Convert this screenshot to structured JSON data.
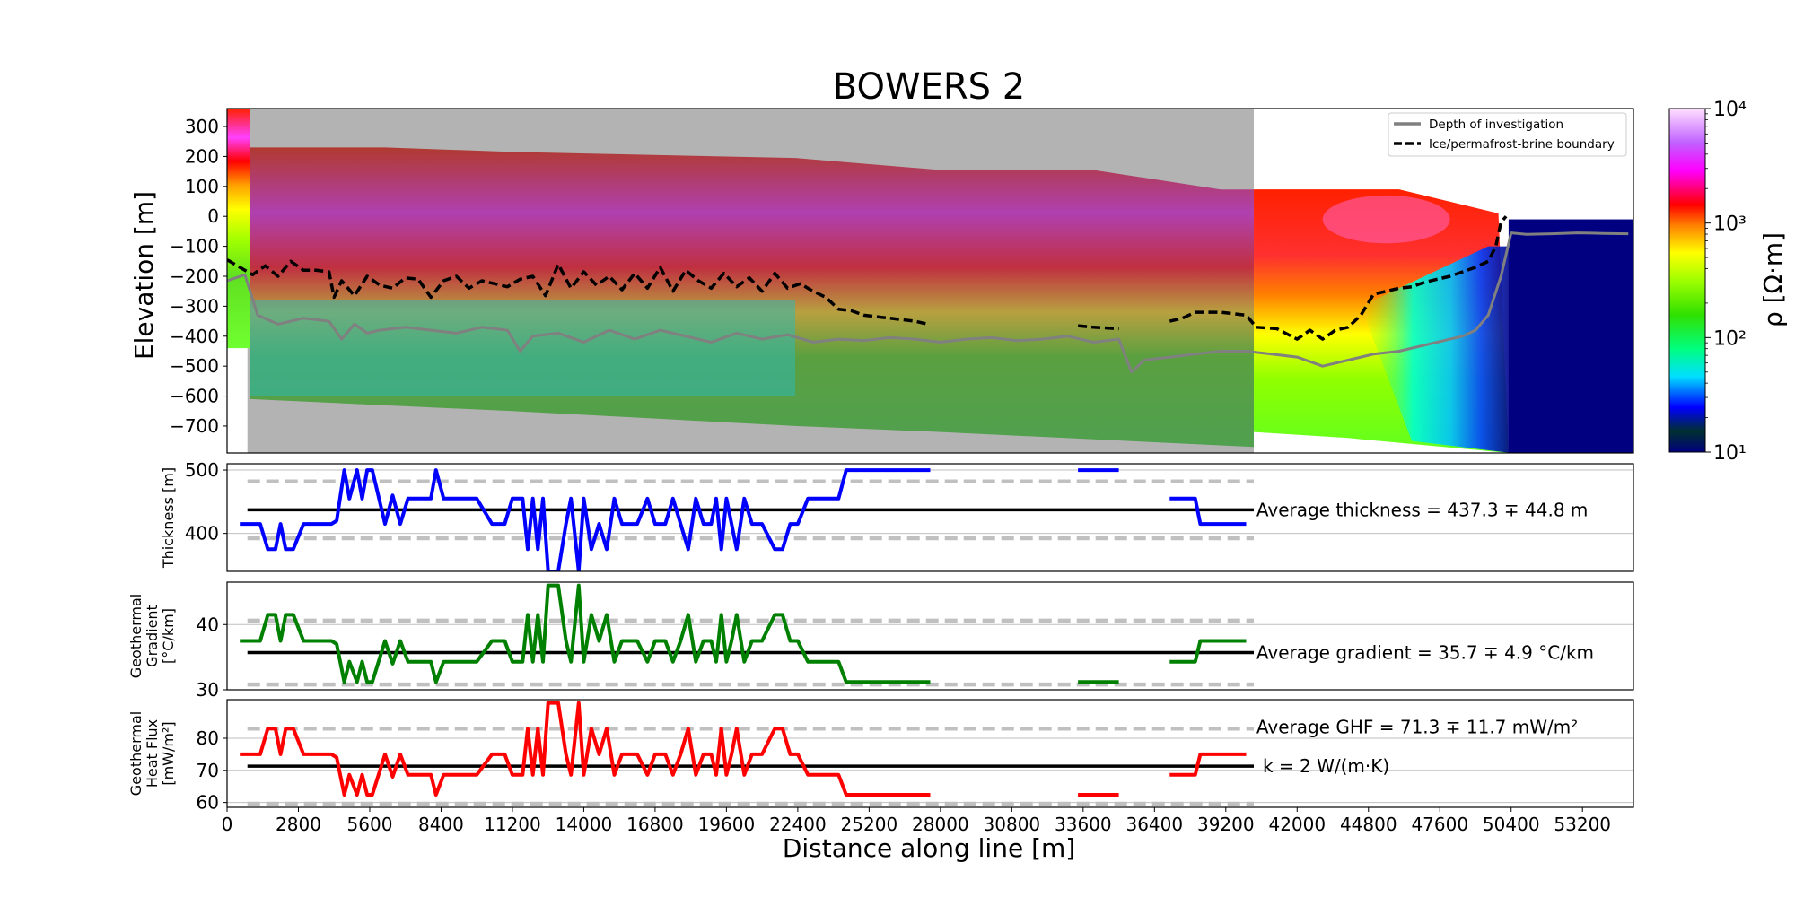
{
  "chart_data": [
    {
      "type": "heatmap",
      "title": "BOWERS 2",
      "ylabel": "Elevation [m]",
      "ylim": [
        -790,
        360
      ],
      "xlim": [
        0,
        55200
      ],
      "yticks": [
        "300",
        "200",
        "100",
        "0",
        "−100",
        "−200",
        "−300",
        "−400",
        "−500",
        "−600",
        "−700"
      ],
      "ytick_values": [
        300,
        200,
        100,
        0,
        -100,
        -200,
        -300,
        -400,
        -500,
        -600,
        -700
      ],
      "colorbar": {
        "label": "ρ [Ω·m]",
        "scale": "log",
        "range": [
          10,
          10000
        ],
        "tick_labels": [
          "10⁴",
          "10³",
          "10²",
          "10¹"
        ],
        "tick_values": [
          10000,
          1000,
          100,
          10
        ]
      },
      "legend": {
        "placement": "top-right",
        "entries": [
          "Depth of investigation",
          "Ice/permafrost-brine boundary"
        ]
      },
      "series": [
        {
          "name": "Ice/permafrost-brine boundary",
          "style": "dashed",
          "color": "#000000",
          "x": [
            0,
            1000,
            1500,
            2000,
            2500,
            3000,
            3500,
            4000,
            4200,
            4500,
            5000,
            5500,
            6000,
            6500,
            7000,
            7500,
            8000,
            8500,
            9000,
            9500,
            10000,
            10500,
            11000,
            11500,
            12000,
            12500,
            13000,
            13500,
            14000,
            14500,
            15000,
            15500,
            16000,
            16500,
            17000,
            17500,
            18000,
            18500,
            19000,
            19500,
            20000,
            20500,
            21000,
            21500,
            22000,
            22500,
            23000,
            23500,
            24000,
            24500,
            25000,
            25500,
            26000,
            26500,
            27000,
            27500
          ],
          "y": [
            -145,
            -195,
            -165,
            -200,
            -150,
            -180,
            -180,
            -185,
            -270,
            -215,
            -265,
            -200,
            -230,
            -240,
            -205,
            -210,
            -270,
            -215,
            -200,
            -240,
            -215,
            -225,
            -235,
            -210,
            -200,
            -265,
            -160,
            -240,
            -185,
            -230,
            -200,
            -245,
            -190,
            -240,
            -170,
            -250,
            -180,
            -215,
            -240,
            -190,
            -235,
            -205,
            -250,
            -190,
            -240,
            -225,
            -250,
            -270,
            -310,
            -315,
            -330,
            -335,
            -340,
            -345,
            -350,
            -360
          ]
        },
        {
          "name": "Ice/permafrost-brine boundary",
          "style": "dashed",
          "color": "#000000",
          "x": [
            33400,
            34000,
            35000
          ],
          "y": [
            -365,
            -370,
            -375
          ]
        },
        {
          "name": "Ice/permafrost-brine boundary",
          "style": "dashed",
          "color": "#000000",
          "x": [
            37000,
            37500,
            38000,
            39000,
            40000,
            40400,
            41200,
            42000,
            42500,
            43000,
            43500,
            44000,
            44500,
            45000,
            45500,
            46000,
            46500,
            47000,
            47500,
            48000,
            48500,
            49000,
            49500,
            49800,
            50000,
            50200
          ],
          "y": [
            -350,
            -340,
            -320,
            -320,
            -330,
            -370,
            -375,
            -410,
            -380,
            -410,
            -380,
            -370,
            -330,
            -260,
            -250,
            -240,
            -235,
            -220,
            -210,
            -200,
            -185,
            -170,
            -150,
            -100,
            -20,
            0
          ]
        },
        {
          "name": "Depth of investigation",
          "style": "solid",
          "color": "#808080",
          "x": [
            0,
            700,
            1200,
            2000,
            3000,
            4000,
            4500,
            5000,
            5500,
            6000,
            7000,
            8000,
            9000,
            10000,
            11000,
            11500,
            12000,
            13000,
            14000,
            15000,
            16000,
            17000,
            18000,
            19000,
            20000,
            21000,
            22000,
            23000,
            24000,
            25000,
            26000,
            27000,
            28000,
            29000,
            30000,
            31000,
            32000,
            33000,
            34000,
            35000,
            35500,
            36000,
            37000,
            38000,
            39000,
            40000,
            41000,
            42000,
            43000,
            44000,
            45000,
            46000,
            47000,
            48000,
            48500,
            49000,
            49500,
            50000,
            50400,
            51000,
            52000,
            53000,
            54000,
            55000
          ],
          "y": [
            -215,
            -195,
            -330,
            -360,
            -340,
            -350,
            -410,
            -360,
            -390,
            -380,
            -370,
            -380,
            -390,
            -370,
            -380,
            -450,
            -400,
            -390,
            -420,
            -380,
            -410,
            -380,
            -400,
            -420,
            -390,
            -410,
            -395,
            -420,
            -410,
            -415,
            -405,
            -410,
            -420,
            -410,
            -405,
            -415,
            -410,
            -400,
            -420,
            -410,
            -520,
            -480,
            -470,
            -460,
            -450,
            -450,
            -460,
            -470,
            -500,
            -480,
            -460,
            -450,
            -430,
            -410,
            -400,
            -380,
            -330,
            -200,
            -55,
            -60,
            -58,
            -55,
            -57,
            -58
          ]
        }
      ]
    },
    {
      "type": "line",
      "ylabel": "Thickness [m]",
      "ylim": [
        340,
        510
      ],
      "yticks": [
        "500",
        "400"
      ],
      "ytick_values": [
        500,
        400
      ],
      "mean": 437.3,
      "mean_minus_sd": 392.5,
      "mean_plus_sd": 482.1,
      "annotation": "Average thickness = 437.3 ∓ 44.8 m",
      "series": [
        {
          "name": "Thickness",
          "color": "#0000ff",
          "x": [
            500,
            1300,
            1600,
            1900,
            2100,
            2300,
            2600,
            3000,
            3500,
            3800,
            4100,
            4300,
            4600,
            4800,
            5100,
            5300,
            5500,
            5700,
            6200,
            6500,
            6800,
            7100,
            7600,
            8000,
            8200,
            8500,
            9000,
            9400,
            9800,
            10400,
            10900,
            11200,
            11400,
            11600,
            11800,
            12000,
            12200,
            12400,
            12600,
            13000,
            13300,
            13500,
            13800,
            14000,
            14300,
            14600,
            14900,
            15200,
            15500,
            15800,
            16100,
            16500,
            16800,
            17200,
            17500,
            17800,
            18100,
            18400,
            18700,
            19000,
            19200,
            19400,
            19600,
            19800,
            20000,
            20300,
            20600,
            21000,
            21500,
            21800,
            22100,
            22400,
            22800,
            23500,
            24000,
            24300,
            25000,
            26000,
            27000,
            27600
          ],
          "y": [
            415,
            415,
            375,
            375,
            415,
            375,
            375,
            415,
            415,
            415,
            415,
            420,
            500,
            455,
            500,
            455,
            500,
            500,
            415,
            460,
            415,
            455,
            455,
            455,
            500,
            455,
            455,
            455,
            455,
            415,
            415,
            455,
            455,
            455,
            375,
            455,
            375,
            455,
            340,
            340,
            415,
            455,
            340,
            455,
            375,
            415,
            375,
            455,
            415,
            415,
            415,
            455,
            415,
            415,
            455,
            415,
            375,
            455,
            415,
            415,
            455,
            375,
            455,
            415,
            375,
            455,
            415,
            415,
            375,
            375,
            415,
            415,
            455,
            455,
            455,
            500,
            500,
            500,
            500,
            500
          ]
        },
        {
          "name": "Thickness",
          "color": "#0000ff",
          "x": [
            33400,
            35000
          ],
          "y": [
            500,
            500
          ]
        },
        {
          "name": "Thickness",
          "color": "#0000ff",
          "x": [
            37000,
            38000,
            38200,
            40000
          ],
          "y": [
            455,
            455,
            415,
            415
          ]
        }
      ]
    },
    {
      "type": "line",
      "ylabel": "Geothermal\nGradient\n[°C/km]",
      "ylim": [
        30,
        46.5
      ],
      "yticks": [
        "40",
        "30"
      ],
      "ytick_values": [
        40,
        30
      ],
      "mean": 35.7,
      "mean_minus_sd": 30.8,
      "mean_plus_sd": 40.6,
      "annotation": "Average gradient = 35.7 ∓ 4.9 °C/km",
      "series": [
        {
          "name": "Gradient",
          "color": "#008000",
          "x": [
            500,
            1300,
            1600,
            1900,
            2100,
            2300,
            2600,
            3000,
            3500,
            3800,
            4100,
            4300,
            4600,
            4800,
            5100,
            5300,
            5500,
            5700,
            6200,
            6500,
            6800,
            7100,
            7600,
            8000,
            8200,
            8500,
            9000,
            9400,
            9800,
            10400,
            10900,
            11200,
            11400,
            11600,
            11800,
            12000,
            12200,
            12400,
            12600,
            13000,
            13300,
            13500,
            13800,
            14000,
            14300,
            14600,
            14900,
            15200,
            15500,
            15800,
            16100,
            16500,
            16800,
            17200,
            17500,
            17800,
            18100,
            18400,
            18700,
            19000,
            19200,
            19400,
            19600,
            19800,
            20000,
            20300,
            20600,
            21000,
            21500,
            21800,
            22100,
            22400,
            22800,
            23500,
            24000,
            24300,
            25000,
            26000,
            27000,
            27600
          ],
          "y": [
            37.5,
            37.5,
            41.5,
            41.5,
            37.5,
            41.5,
            41.5,
            37.5,
            37.5,
            37.5,
            37.5,
            37,
            31.2,
            34.3,
            31.2,
            34.3,
            31.2,
            31.2,
            37.5,
            34,
            37.5,
            34.3,
            34.3,
            34.3,
            31.2,
            34.3,
            34.3,
            34.3,
            34.3,
            37.5,
            37.5,
            34.3,
            34.3,
            34.3,
            41.5,
            34.3,
            41.5,
            34.3,
            46,
            46,
            37.5,
            34.3,
            46,
            34.3,
            41.5,
            37.5,
            41.5,
            34.3,
            37.5,
            37.5,
            37.5,
            34.3,
            37.5,
            37.5,
            34.3,
            37.5,
            41.5,
            34.3,
            37.5,
            37.5,
            34.3,
            41.5,
            34.3,
            37.5,
            41.5,
            34.3,
            37.5,
            37.5,
            41.5,
            41.5,
            37.5,
            37.5,
            34.3,
            34.3,
            34.3,
            31.2,
            31.2,
            31.2,
            31.2,
            31.2
          ]
        },
        {
          "name": "Gradient",
          "color": "#008000",
          "x": [
            33400,
            35000
          ],
          "y": [
            31.2,
            31.2
          ]
        },
        {
          "name": "Gradient",
          "color": "#008000",
          "x": [
            37000,
            38000,
            38200,
            40000
          ],
          "y": [
            34.3,
            34.3,
            37.5,
            37.5
          ]
        }
      ]
    },
    {
      "type": "line",
      "ylabel": "Geothermal\nHeat Flux\n[mW/m²]",
      "xlabel": "Distance along line [m]",
      "ylim": [
        58.5,
        92
      ],
      "yticks": [
        "80",
        "70",
        "60"
      ],
      "ytick_values": [
        80,
        70,
        60
      ],
      "xticks": [
        "0",
        "2800",
        "5600",
        "8400",
        "11200",
        "14000",
        "16800",
        "19600",
        "22400",
        "25200",
        "28000",
        "30800",
        "33600",
        "36400",
        "39200",
        "42000",
        "44800",
        "47600",
        "50400",
        "53200"
      ],
      "xtick_values": [
        0,
        2800,
        5600,
        8400,
        11200,
        14000,
        16800,
        19600,
        22400,
        25200,
        28000,
        30800,
        33600,
        36400,
        39200,
        42000,
        44800,
        47600,
        50400,
        53200
      ],
      "mean": 71.3,
      "mean_minus_sd": 59.6,
      "mean_plus_sd": 83.0,
      "annotation": "Average GHF = 71.3 ∓ 11.7 mW/m²",
      "annotation2": "k = 2 W/(m·K)",
      "series": [
        {
          "name": "GHF",
          "color": "#ff0000",
          "x": [
            500,
            1300,
            1600,
            1900,
            2100,
            2300,
            2600,
            3000,
            3500,
            3800,
            4100,
            4300,
            4600,
            4800,
            5100,
            5300,
            5500,
            5700,
            6200,
            6500,
            6800,
            7100,
            7600,
            8000,
            8200,
            8500,
            9000,
            9400,
            9800,
            10400,
            10900,
            11200,
            11400,
            11600,
            11800,
            12000,
            12200,
            12400,
            12600,
            13000,
            13300,
            13500,
            13800,
            14000,
            14300,
            14600,
            14900,
            15200,
            15500,
            15800,
            16100,
            16500,
            16800,
            17200,
            17500,
            17800,
            18100,
            18400,
            18700,
            19000,
            19200,
            19400,
            19600,
            19800,
            20000,
            20300,
            20600,
            21000,
            21500,
            21800,
            22100,
            22400,
            22800,
            23500,
            24000,
            24300,
            25000,
            26000,
            27000,
            27600
          ],
          "y": [
            75,
            75,
            83,
            83,
            75,
            83,
            83,
            75,
            75,
            75,
            75,
            74,
            62.4,
            68.6,
            62.4,
            68.6,
            62.4,
            62.4,
            75,
            68,
            75,
            68.6,
            68.6,
            68.6,
            62.4,
            68.6,
            68.6,
            68.6,
            68.6,
            75,
            75,
            68.6,
            68.6,
            68.6,
            83,
            68.6,
            83,
            68.6,
            91,
            91,
            75,
            68.6,
            91,
            68.6,
            83,
            75,
            83,
            68.6,
            75,
            75,
            75,
            68.6,
            75,
            75,
            68.6,
            75,
            83,
            68.6,
            75,
            75,
            68.6,
            83,
            68.6,
            75,
            83,
            68.6,
            75,
            75,
            83,
            83,
            75,
            75,
            68.6,
            68.6,
            68.6,
            62.4,
            62.4,
            62.4,
            62.4,
            62.4
          ]
        },
        {
          "name": "GHF",
          "color": "#ff0000",
          "x": [
            33400,
            35000
          ],
          "y": [
            62.4,
            62.4
          ]
        },
        {
          "name": "GHF",
          "color": "#ff0000",
          "x": [
            37000,
            38000,
            38200,
            40000
          ],
          "y": [
            68.6,
            68.6,
            75,
            75
          ]
        }
      ]
    }
  ]
}
